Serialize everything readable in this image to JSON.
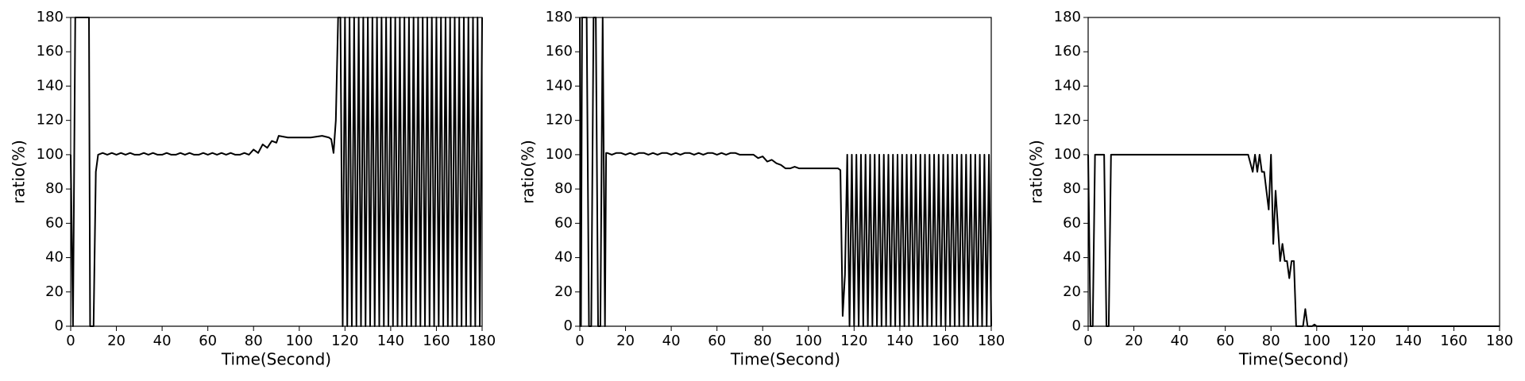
{
  "chart_data": [
    {
      "type": "line",
      "xlabel": "Time(Second)",
      "ylabel": "ratio(%)",
      "color": "#000000",
      "xlim": [
        0,
        180
      ],
      "ylim": [
        0,
        180
      ],
      "xticks": [
        0,
        20,
        40,
        60,
        80,
        100,
        120,
        140,
        160,
        180
      ],
      "yticks": [
        0,
        20,
        40,
        60,
        80,
        100,
        120,
        140,
        160,
        180
      ],
      "x": [
        0,
        1,
        2,
        8,
        8.5,
        10,
        11,
        12,
        14,
        16,
        18,
        20,
        22,
        24,
        26,
        28,
        30,
        32,
        34,
        36,
        38,
        40,
        42,
        44,
        46,
        48,
        50,
        52,
        54,
        56,
        58,
        60,
        62,
        64,
        66,
        68,
        70,
        72,
        74,
        76,
        78,
        80,
        82,
        84,
        86,
        88,
        90,
        91,
        95,
        100,
        105,
        110,
        113,
        114,
        115,
        116,
        117,
        118,
        119,
        120,
        121,
        122,
        123,
        124,
        125,
        126,
        127,
        128,
        129,
        130,
        131,
        132,
        133,
        134,
        135,
        136,
        137,
        138,
        139,
        140,
        141,
        142,
        143,
        144,
        145,
        146,
        147,
        148,
        149,
        150,
        151,
        152,
        153,
        154,
        155,
        156,
        157,
        158,
        159,
        160,
        161,
        162,
        163,
        164,
        165,
        166,
        167,
        168,
        169,
        170,
        171,
        172,
        173,
        174,
        175,
        176,
        177,
        178,
        179,
        180
      ],
      "values": [
        100,
        0,
        180,
        180,
        0,
        0,
        90,
        100,
        101,
        100,
        101,
        100,
        101,
        100,
        101,
        100,
        100,
        101,
        100,
        101,
        100,
        100,
        101,
        100,
        100,
        101,
        100,
        101,
        100,
        100,
        101,
        100,
        101,
        100,
        101,
        100,
        101,
        100,
        100,
        101,
        100,
        103,
        101,
        106,
        104,
        108,
        107,
        111,
        110,
        110,
        110,
        111,
        110,
        109,
        101,
        120,
        180,
        180,
        0,
        180,
        0,
        180,
        0,
        180,
        0,
        180,
        0,
        180,
        0,
        180,
        0,
        180,
        0,
        180,
        0,
        180,
        0,
        180,
        0,
        180,
        0,
        180,
        0,
        180,
        0,
        180,
        0,
        180,
        0,
        180,
        0,
        180,
        0,
        180,
        0,
        180,
        0,
        180,
        0,
        180,
        0,
        180,
        0,
        180,
        0,
        180,
        0,
        180,
        0,
        180,
        0,
        180,
        0,
        180,
        0,
        180,
        0,
        180,
        0,
        180
      ]
    },
    {
      "type": "line",
      "xlabel": "Time(Second)",
      "ylabel": "ratio(%)",
      "color": "#000000",
      "xlim": [
        0,
        180
      ],
      "ylim": [
        0,
        180
      ],
      "xticks": [
        0,
        20,
        40,
        60,
        80,
        100,
        120,
        140,
        160,
        180
      ],
      "yticks": [
        0,
        20,
        40,
        60,
        80,
        100,
        120,
        140,
        160,
        180
      ],
      "x": [
        0,
        0.5,
        1,
        3,
        4,
        5,
        6,
        7,
        8,
        9,
        10,
        11,
        11.5,
        12,
        14,
        16,
        18,
        20,
        22,
        24,
        26,
        28,
        30,
        32,
        34,
        36,
        38,
        40,
        42,
        44,
        46,
        48,
        50,
        52,
        54,
        56,
        58,
        60,
        62,
        64,
        66,
        68,
        70,
        72,
        76,
        78,
        80,
        82,
        84,
        86,
        88,
        90,
        92,
        94,
        96,
        100,
        110,
        113,
        114,
        115,
        116,
        117,
        118,
        119,
        120,
        121,
        122,
        123,
        124,
        125,
        126,
        127,
        128,
        129,
        130,
        131,
        132,
        133,
        134,
        135,
        136,
        137,
        138,
        139,
        140,
        141,
        142,
        143,
        144,
        145,
        146,
        147,
        148,
        149,
        150,
        151,
        152,
        153,
        154,
        155,
        156,
        157,
        158,
        159,
        160,
        161,
        162,
        163,
        164,
        165,
        166,
        167,
        168,
        169,
        170,
        171,
        172,
        173,
        174,
        175,
        176,
        177,
        178,
        179,
        180
      ],
      "values": [
        180,
        0,
        180,
        180,
        0,
        0,
        180,
        180,
        0,
        0,
        180,
        0,
        101,
        101,
        100,
        101,
        101,
        100,
        101,
        100,
        101,
        101,
        100,
        101,
        100,
        101,
        101,
        100,
        101,
        100,
        101,
        101,
        100,
        101,
        100,
        101,
        101,
        100,
        101,
        100,
        101,
        101,
        100,
        100,
        100,
        98,
        99,
        96,
        97,
        95,
        94,
        92,
        92,
        93,
        92,
        92,
        92,
        92,
        91,
        6,
        30,
        100,
        0,
        100,
        0,
        100,
        0,
        100,
        0,
        100,
        0,
        100,
        0,
        100,
        0,
        100,
        0,
        100,
        0,
        100,
        0,
        100,
        0,
        100,
        0,
        100,
        0,
        100,
        0,
        100,
        0,
        100,
        0,
        100,
        0,
        100,
        0,
        100,
        0,
        100,
        0,
        100,
        0,
        100,
        0,
        100,
        0,
        100,
        0,
        100,
        0,
        100,
        0,
        100,
        0,
        100,
        0,
        100,
        0,
        100,
        0,
        100,
        0,
        100,
        0
      ]
    },
    {
      "type": "line",
      "xlabel": "Time(Second)",
      "ylabel": "ratio(%)",
      "color": "#000000",
      "xlim": [
        0,
        180
      ],
      "ylim": [
        0,
        180
      ],
      "xticks": [
        0,
        20,
        40,
        60,
        80,
        100,
        120,
        140,
        160,
        180
      ],
      "yticks": [
        0,
        20,
        40,
        60,
        80,
        100,
        120,
        140,
        160,
        180
      ],
      "x": [
        0,
        1,
        2,
        3,
        7,
        8,
        9,
        10,
        70,
        72,
        73,
        74,
        75,
        76,
        77,
        79,
        80,
        81,
        82,
        84,
        85,
        86,
        87,
        88,
        89,
        90,
        91,
        94,
        95,
        96,
        98,
        99,
        100,
        180
      ],
      "values": [
        100,
        0,
        0,
        100,
        100,
        0,
        0,
        100,
        100,
        90,
        100,
        90,
        100,
        90,
        90,
        68,
        100,
        48,
        79,
        38,
        48,
        38,
        38,
        28,
        38,
        38,
        0,
        0,
        10,
        0,
        0,
        1,
        0,
        0
      ]
    }
  ]
}
